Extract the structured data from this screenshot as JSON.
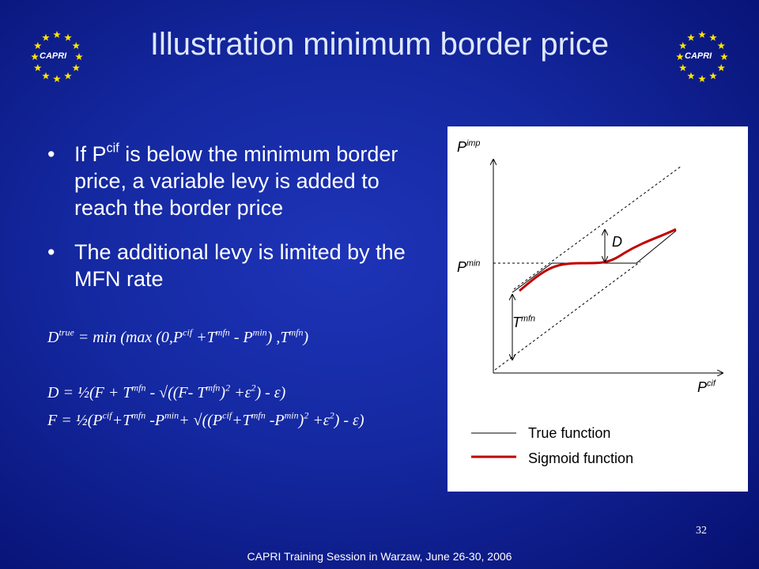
{
  "title": "Illustration minimum border price",
  "logo_text": "CAPRI",
  "bullets": [
    [
      {
        "text": "If P"
      },
      {
        "sup": "cif"
      },
      {
        "text": " is below the minimum border price, a variable levy is added to reach the border price"
      }
    ],
    [
      {
        "text": "The additional levy is limited by the MFN rate"
      }
    ]
  ],
  "formulas": [
    [
      {
        "text": "D"
      },
      {
        "sup": "true"
      },
      {
        "text": " = min (max (0,P"
      },
      {
        "sup": "cif"
      },
      {
        "text": " +T"
      },
      {
        "sup": "mfn"
      },
      {
        "text": " - P"
      },
      {
        "sup": "min"
      },
      {
        "text": ") ,T"
      },
      {
        "sup": "mfn"
      },
      {
        "text": ")"
      }
    ],
    [
      {
        "text": "D = ½(F + T"
      },
      {
        "sup": "mfn"
      },
      {
        "text": " - √((F- T"
      },
      {
        "sup": "mfn"
      },
      {
        "text": ")"
      },
      {
        "sup": "2"
      },
      {
        "text": " +ε"
      },
      {
        "sup": "2"
      },
      {
        "text": ") - ε)"
      }
    ],
    [
      {
        "text": "F = ½(P"
      },
      {
        "sup": "cif"
      },
      {
        "text": "+T"
      },
      {
        "sup": "mfn"
      },
      {
        "text": " -P"
      },
      {
        "sup": "min"
      },
      {
        "text": "+ √((P"
      },
      {
        "sup": "cif"
      },
      {
        "text": "+T"
      },
      {
        "sup": "mfn"
      },
      {
        "text": " -P"
      },
      {
        "sup": "min"
      },
      {
        "text": ")"
      },
      {
        "sup": "2"
      },
      {
        "text": " +ε"
      },
      {
        "sup": "2"
      },
      {
        "text": ") - ε)"
      }
    ]
  ],
  "diagram": {
    "y_axis_label": [
      {
        "text": "P"
      },
      {
        "sup": "imp"
      }
    ],
    "min_label": [
      {
        "text": "P"
      },
      {
        "sup": "min"
      }
    ],
    "mfn_label": [
      {
        "text": "T"
      },
      {
        "sup": "mfn"
      }
    ],
    "d_label": [
      {
        "text": "D"
      }
    ],
    "x_axis_label": [
      {
        "text": "P"
      },
      {
        "sup": "cif"
      }
    ],
    "legend": [
      "True function",
      "Sigmoid function"
    ]
  },
  "page_number": "32",
  "footer": "CAPRI Training Session in Warzaw, June 26-30, 2006"
}
